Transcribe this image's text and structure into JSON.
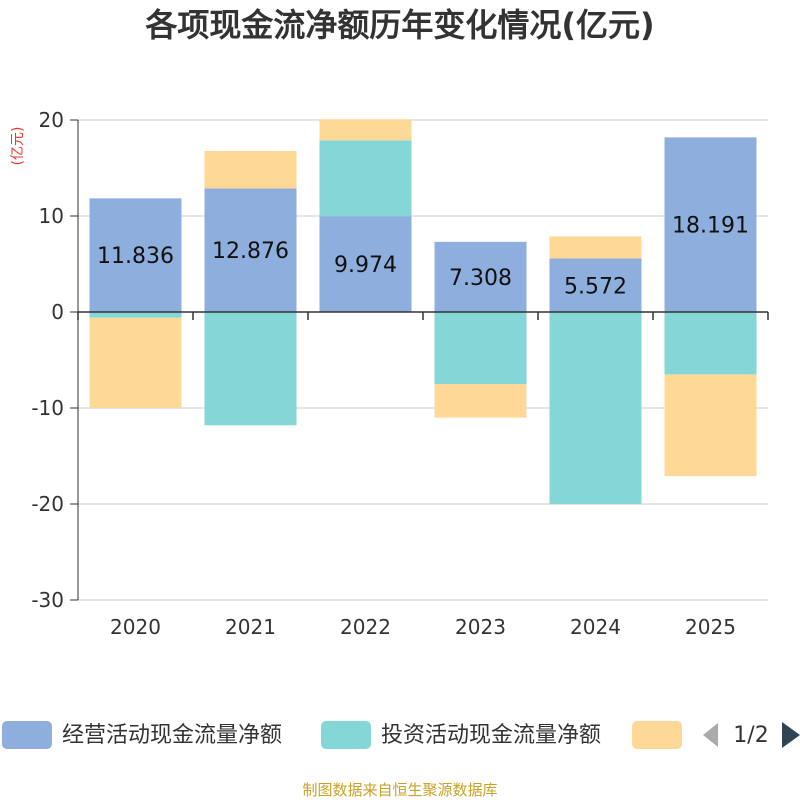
{
  "colors": {
    "operating": "#8eaede",
    "investing": "#85d6d7",
    "financing": "#fdd896",
    "grid": "#cccccc",
    "axis": "#333333",
    "unit": "#e8382b",
    "source": "#c9a227",
    "page_arrow_prev": "#aaaaaa",
    "page_arrow_next": "#2f4554"
  },
  "pagination": {
    "label": "1/2"
  },
  "source_text": "制图数据来自恒生聚源数据库",
  "chart_data": {
    "type": "bar",
    "stacked": true,
    "title": "各项现金流净额历年变化情况(亿元)",
    "ylabel": "(亿元)",
    "xlabel": "",
    "ylim": [
      -30,
      20
    ],
    "yticks": [
      20,
      10,
      0,
      -10,
      -20,
      -30
    ],
    "grid": true,
    "legend_position": "bottom",
    "categories": [
      "2020",
      "2021",
      "2022",
      "2023",
      "2024",
      "2025"
    ],
    "series": [
      {
        "name": "经营活动现金流量净额",
        "color_key": "operating",
        "values": [
          11.836,
          12.876,
          9.974,
          7.308,
          5.572,
          18.191
        ],
        "data_labels": [
          "11.836",
          "12.876",
          "9.974",
          "7.308",
          "5.572",
          "18.191"
        ]
      },
      {
        "name": "投资活动现金流量净额",
        "color_key": "investing",
        "values": [
          -0.6,
          -11.8,
          7.9,
          -7.5,
          -20.0,
          -6.5
        ]
      },
      {
        "name": "",
        "color_key": "financing",
        "values": [
          -9.4,
          3.9,
          2.2,
          -3.5,
          2.3,
          -10.6
        ]
      }
    ]
  }
}
